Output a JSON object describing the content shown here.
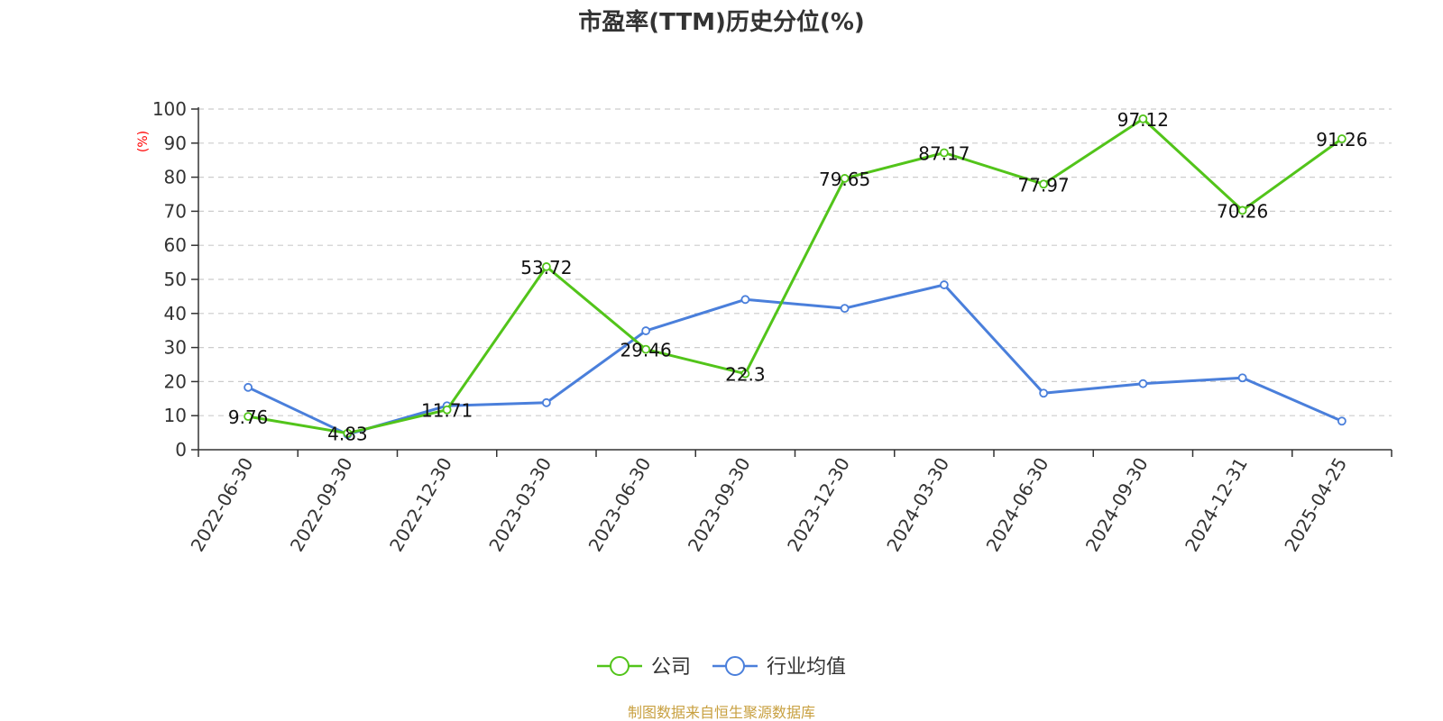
{
  "chart_data": {
    "type": "line",
    "title": "市盈率(TTM)历史分位(%)",
    "ylabel": "(%)",
    "xlabel": "",
    "ylim": [
      0,
      100
    ],
    "yticks": [
      0,
      10,
      20,
      30,
      40,
      50,
      60,
      70,
      80,
      90,
      100
    ],
    "grid": true,
    "legend_position": "bottom-center",
    "categories": [
      "2022-06-30",
      "2022-09-30",
      "2022-12-30",
      "2023-03-30",
      "2023-06-30",
      "2023-09-30",
      "2023-12-30",
      "2024-03-30",
      "2024-06-30",
      "2024-09-30",
      "2024-12-31",
      "2025-04-25"
    ],
    "series": [
      {
        "name": "公司",
        "color": "#52c41a",
        "show_labels": true,
        "values": [
          9.76,
          4.83,
          11.71,
          53.72,
          29.46,
          22.3,
          79.65,
          87.17,
          77.97,
          97.12,
          70.26,
          91.26
        ]
      },
      {
        "name": "行业均值",
        "color": "#4a7fdb",
        "show_labels": false,
        "values": [
          18.3,
          4.5,
          12.9,
          13.8,
          34.9,
          44.1,
          41.5,
          48.4,
          16.6,
          19.4,
          21.1,
          8.4
        ]
      }
    ],
    "ylabel_color": "#ff0000"
  },
  "footer": {
    "source": "制图数据来自恒生聚源数据库",
    "source_color": "#c8a040"
  }
}
